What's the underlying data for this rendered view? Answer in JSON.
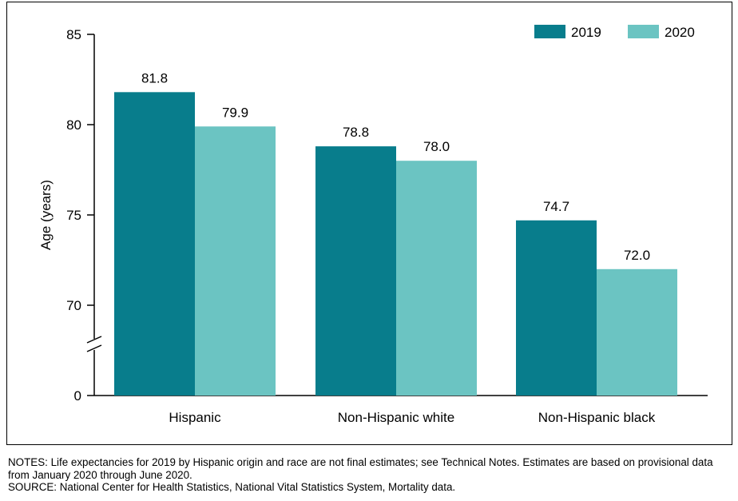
{
  "chart_data": {
    "type": "bar",
    "categories": [
      "Hispanic",
      "Non-Hispanic white",
      "Non-Hispanic black"
    ],
    "series": [
      {
        "name": "2019",
        "values": [
          81.8,
          78.8,
          74.7
        ],
        "value_labels": [
          "81.8",
          "78.8",
          "74.7"
        ]
      },
      {
        "name": "2020",
        "values": [
          79.9,
          78.0,
          72.0
        ],
        "value_labels": [
          "79.9",
          "78.0",
          "72.0"
        ]
      }
    ],
    "colors": {
      "2019": "#087D8C",
      "2020": "#6BC4C2"
    },
    "ylabel": "Age (years)",
    "xlabel": "",
    "ylim": [
      0,
      85
    ],
    "axis_break": true,
    "y_ticks": [
      0,
      70,
      75,
      80,
      85
    ],
    "legend_position": "top-right",
    "grid": false
  },
  "notes": {
    "line1": "NOTES: Life expectancies for 2019 by Hispanic origin and race are not final estimates; see Technical Notes. Estimates are based on provisional data from January 2020 through June 2020.",
    "line2": "SOURCE: National Center for Health Statistics, National Vital Statistics System, Mortality data."
  }
}
